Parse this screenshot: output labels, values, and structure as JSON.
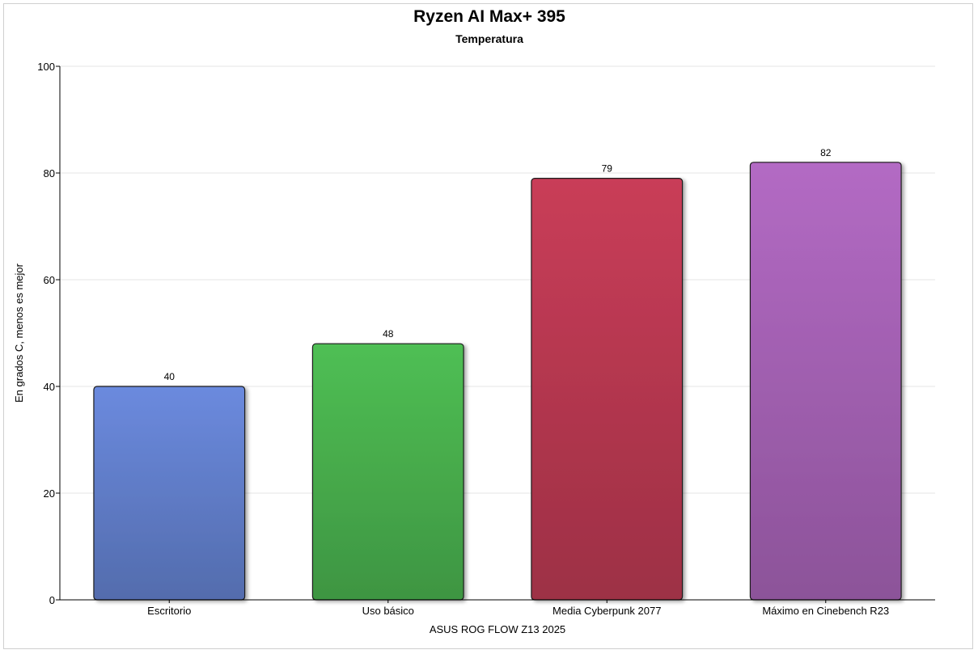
{
  "chart_data": {
    "type": "bar",
    "title": "Ryzen AI Max+ 395",
    "subtitle": "Temperatura",
    "xlabel": "ASUS ROG FLOW Z13 2025",
    "ylabel": "En grados C, menos es mejor",
    "ylim": [
      0,
      100
    ],
    "yticks": [
      "0",
      "20",
      "40",
      "60",
      "80",
      "100"
    ],
    "grid": true,
    "categories": [
      "Escritorio",
      "Uso básico",
      "Media Cyberpunk 2077",
      "Máximo en Cinebench R23"
    ],
    "values": [
      40,
      48,
      79,
      82
    ],
    "value_labels": [
      "40",
      "48",
      "79",
      "82"
    ],
    "colors": [
      "#6b8ade",
      "#4fbf54",
      "#c93d58",
      "#b36ac4"
    ]
  }
}
